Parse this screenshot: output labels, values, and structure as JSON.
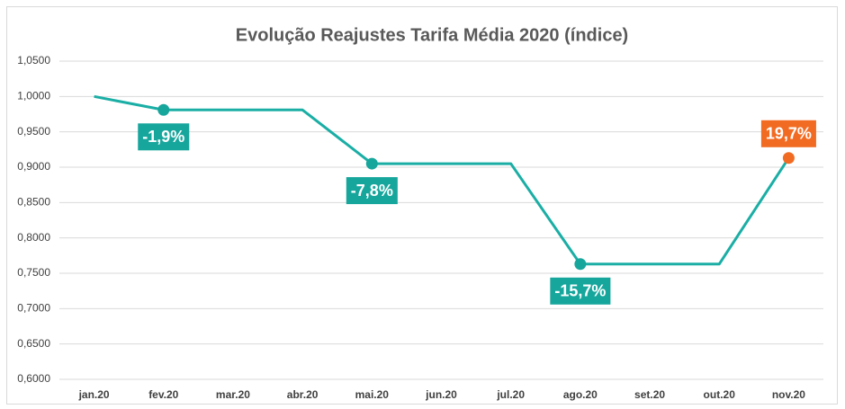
{
  "chart_data": {
    "type": "line",
    "title": "Evolução Reajustes Tarifa Média 2020 (índice)",
    "categories": [
      "jan.20",
      "fev.20",
      "mar.20",
      "abr.20",
      "mai.20",
      "jun.20",
      "jul.20",
      "ago.20",
      "set.20",
      "out.20",
      "nov.20"
    ],
    "series": [
      {
        "color": "#1aaea5",
        "values": [
          1.0,
          0.981,
          0.981,
          0.981,
          0.905,
          0.905,
          0.905,
          0.763,
          0.763,
          0.763,
          0.913
        ]
      }
    ],
    "ylim": [
      0.6,
      1.05
    ],
    "yticks": [
      {
        "value": 0.6,
        "label": "0,6000"
      },
      {
        "value": 0.65,
        "label": "0,6500"
      },
      {
        "value": 0.7,
        "label": "0,7000"
      },
      {
        "value": 0.75,
        "label": "0,7500"
      },
      {
        "value": 0.8,
        "label": "0,8000"
      },
      {
        "value": 0.85,
        "label": "0,8500"
      },
      {
        "value": 0.9,
        "label": "0,9000"
      },
      {
        "value": 0.95,
        "label": "0,9500"
      },
      {
        "value": 1.0,
        "label": "1,0000"
      },
      {
        "value": 1.05,
        "label": "1,0500"
      }
    ],
    "grid": true,
    "annotations": [
      {
        "x": "fev.20",
        "text": "-1,9%",
        "color": "#17a69c",
        "position": "below"
      },
      {
        "x": "mai.20",
        "text": "-7,8%",
        "color": "#17a69c",
        "position": "below"
      },
      {
        "x": "ago.20",
        "text": "-15,7%",
        "color": "#17a69c",
        "position": "below"
      },
      {
        "x": "nov.20",
        "text": "19,7%",
        "color": "#f26b22",
        "position": "above"
      }
    ]
  }
}
